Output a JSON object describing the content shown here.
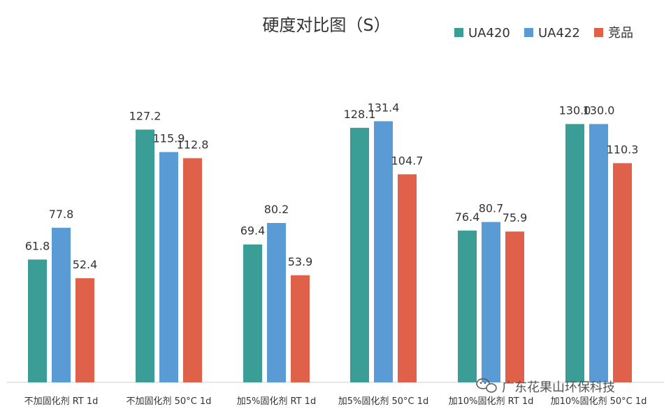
{
  "chart_data": {
    "type": "bar",
    "title": "硬度对比图（S）",
    "categories": [
      "不加固化剂 RT 1d",
      "不加固化剂 50°C 1d",
      "加5%固化剂 RT 1d",
      "加5%固化剂 50°C 1d",
      "加10%固化剂 RT 1d",
      "加10%固化剂 50°C 1d"
    ],
    "series": [
      {
        "name": "UA420",
        "color": "#3A9E96",
        "values": [
          61.8,
          127.2,
          69.4,
          128.1,
          76.4,
          130.0
        ]
      },
      {
        "name": "UA422",
        "color": "#5A9BD5",
        "values": [
          77.8,
          115.9,
          80.2,
          131.4,
          80.7,
          130.0
        ]
      },
      {
        "name": "竞品",
        "color": "#E0614A",
        "values": [
          52.4,
          112.8,
          53.9,
          104.7,
          75.9,
          110.3
        ]
      }
    ],
    "data_labels": [
      [
        "61.8",
        "127.2",
        "69.4",
        "128.1",
        "76.4",
        "130.0"
      ],
      [
        "77.8",
        "115.9",
        "80.2",
        "131.4",
        "80.7",
        "130.0"
      ],
      [
        "52.4",
        "112.8",
        "53.9",
        "104.7",
        "75.9",
        "110.3"
      ]
    ],
    "ylim": [
      0,
      140
    ],
    "grid": false,
    "legend": "top-right"
  },
  "watermark": {
    "text": "广东花果山环保科技",
    "icon": "wechat-icon"
  }
}
